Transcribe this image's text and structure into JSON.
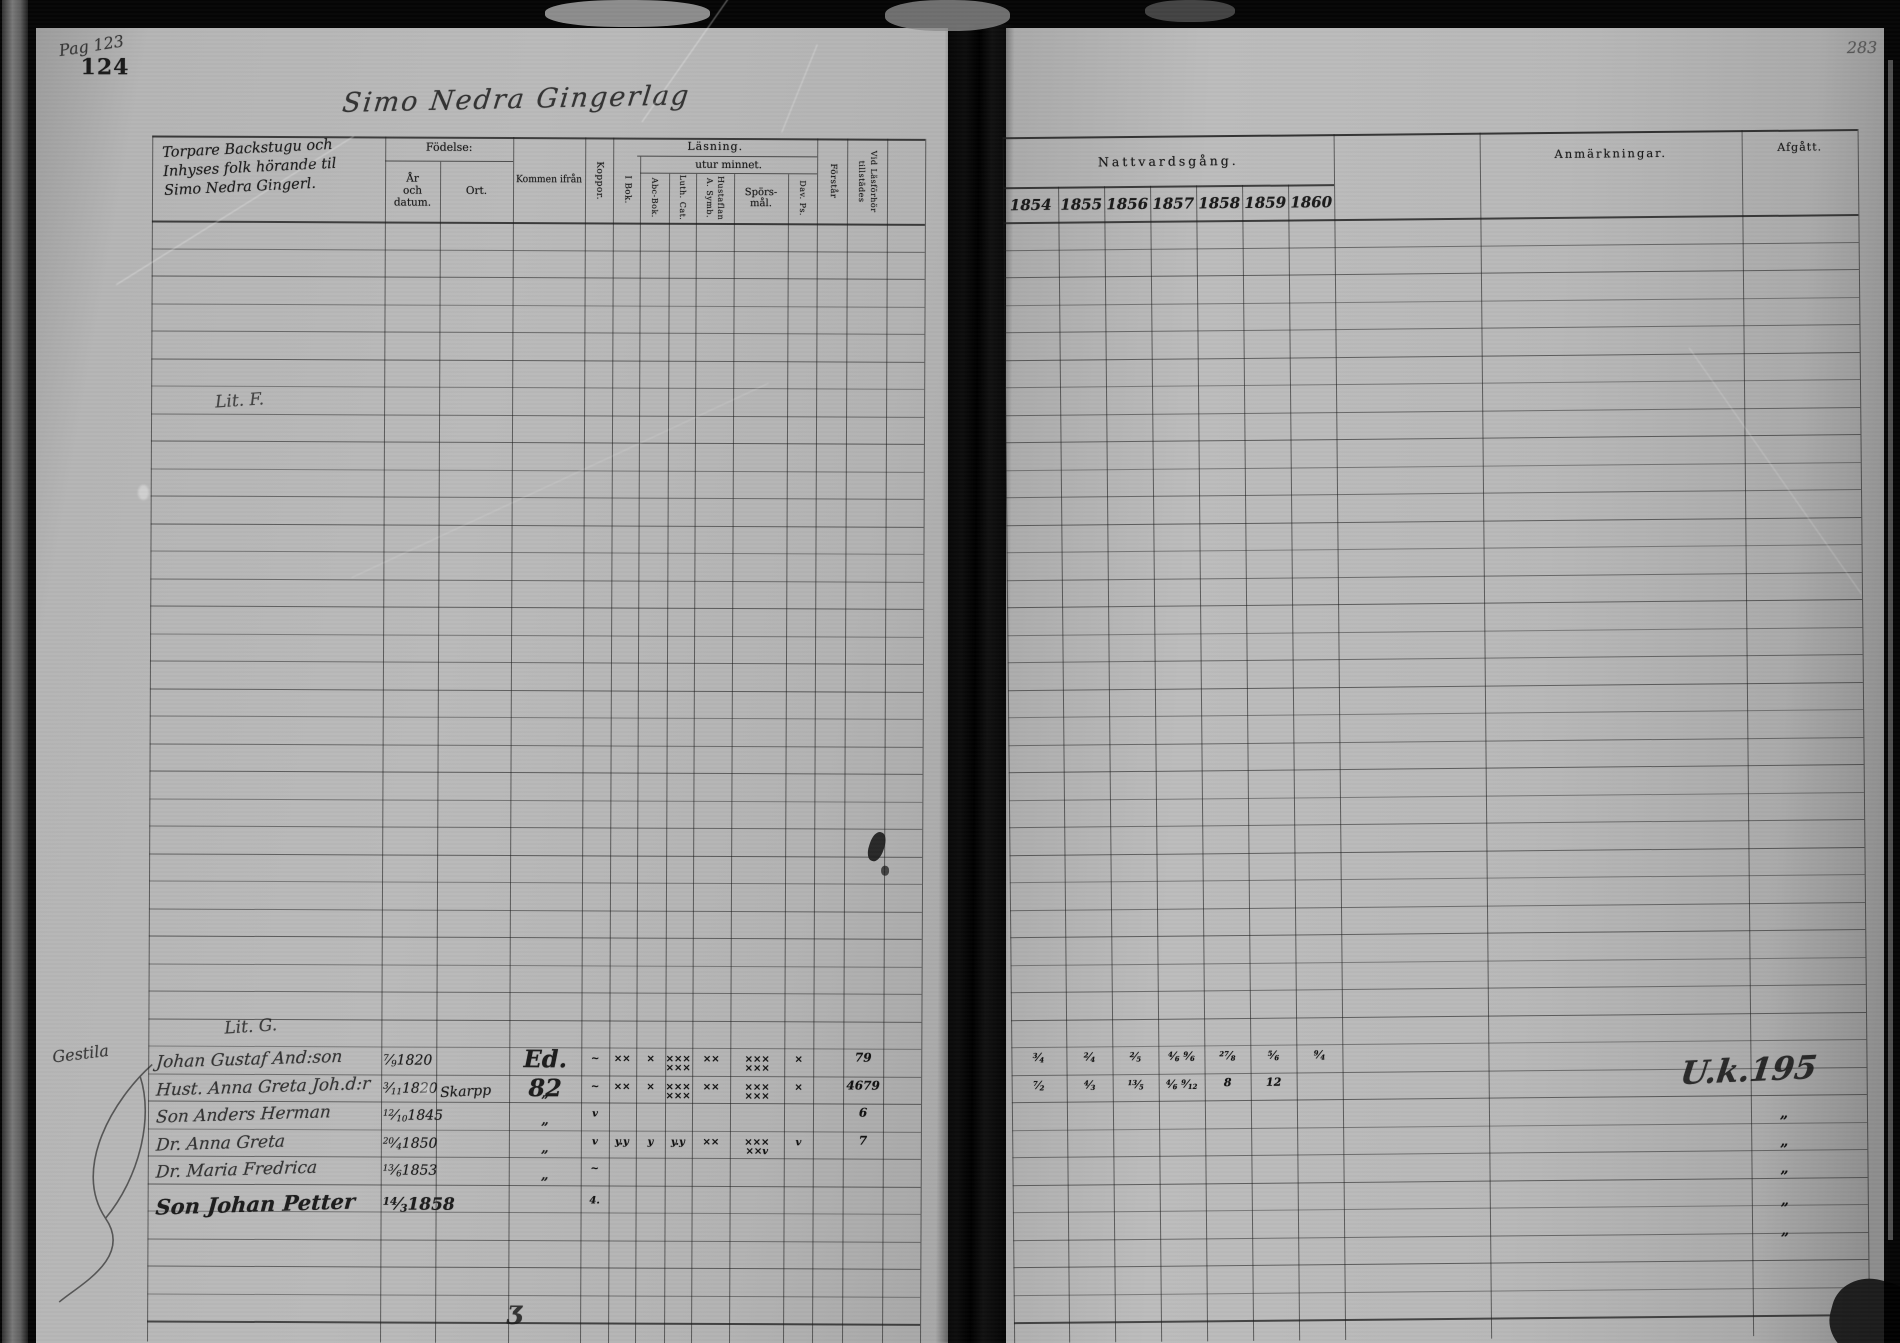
{
  "photo": {
    "pag_note": "Pag 123",
    "left_page_number": "124",
    "right_page_number": "283",
    "title_script": "Simo Nedra Gingerlag"
  },
  "left_table": {
    "name_header_lines": [
      "Torpare Backstugu och",
      "Inhyses folk hörande til",
      "Simo Nedra Gingerl."
    ],
    "fodelse": {
      "label": "Födelse:",
      "ar": "År\noch datum.",
      "ort": "Ort."
    },
    "kommen_ifran": "Kommen ifrån",
    "koppor": "Koppor.",
    "lasning": {
      "label": "Läsning.",
      "i_bok": "I Bok.",
      "utur_minnet": "utur minnet.",
      "cols": [
        "Abc-Bok.",
        "Luth. Cat.",
        "Hustaflan\nA. Symb.",
        "Spörs-\nmål.",
        "Dav. Ps."
      ]
    },
    "forstar": "Förstår",
    "vid_lasforhor": "Vid Läsförhör\ntillstädes"
  },
  "right_table": {
    "nattvardsgang": "Nattvardsgång.",
    "years": [
      "1854",
      "1855",
      "1856",
      "1857",
      "1858",
      "1859",
      "1860"
    ],
    "anmarkningar": "Anmärkningar.",
    "afgatt": "Afgått."
  },
  "annotations": {
    "lit_f": "Lit. F.",
    "lit_g": "Lit. G.",
    "margin_name": "Gestila",
    "uk_note": "U.k.195",
    "stray_mark": "ʒ"
  },
  "entries": [
    {
      "name": "Johan Gustaf And:son",
      "date": "7/9",
      "year": "1820",
      "ort": "",
      "kommen": "Ed. 82",
      "marks": {
        "koppor": "~",
        "i_bok": "××",
        "abc": "×",
        "luth": "×××\n×××",
        "hust": "××",
        "spors": "×××\n×××",
        "dav": "×"
      },
      "vid": "79",
      "nvg": [
        "3/4",
        "2/4",
        "2/5",
        "4/6 9/6",
        "27/8",
        "5/6",
        "9/4"
      ],
      "afgatt": "",
      "bold": false
    },
    {
      "name": "Hust. Anna Greta Joh.d:r",
      "date": "3/11",
      "year": "1820",
      "ort": "Skarpp",
      "kommen": "„",
      "marks": {
        "koppor": "~",
        "i_bok": "××",
        "abc": "×",
        "luth": "×××\n×××",
        "hust": "××",
        "spors": "×××\n×××",
        "dav": "×"
      },
      "vid": "4679",
      "nvg": [
        "7/2",
        "4/3",
        "13/5",
        "4/6 9/12",
        "8",
        "12"
      ],
      "afgatt": "",
      "bold": false
    },
    {
      "name": "Son Anders Herman",
      "date": "12/10",
      "year": "1845",
      "ort": "",
      "kommen": "„",
      "marks": {
        "koppor": "v"
      },
      "vid": "6",
      "nvg": [],
      "afgatt": "„",
      "bold": false
    },
    {
      "name": "Dr. Anna Greta",
      "date": "20/4",
      "year": "1850",
      "ort": "",
      "kommen": "„",
      "marks": {
        "koppor": "v",
        "i_bok": "y.y",
        "abc": "y",
        "luth": "y.y",
        "hust": "××",
        "spors": "×××\n××v",
        "dav": "v"
      },
      "vid": "7",
      "nvg": [],
      "afgatt": "„",
      "bold": false
    },
    {
      "name": "Dr. Maria Fredrica",
      "date": "13/6",
      "year": "1853",
      "ort": "",
      "kommen": "„",
      "marks": {
        "koppor": "~"
      },
      "vid": "",
      "nvg": [],
      "afgatt": "„",
      "bold": false
    },
    {
      "name": "Son Johan Petter",
      "date": "14/3",
      "year": "1858",
      "ort": "",
      "kommen": "",
      "marks": {
        "koppor": "4."
      },
      "vid": "",
      "nvg": [],
      "afgatt": "„",
      "bold": true
    },
    {
      "name": "",
      "date": "",
      "year": "",
      "ort": "",
      "kommen": "",
      "marks": {},
      "vid": "",
      "nvg": [],
      "afgatt": "„",
      "bold": false
    }
  ]
}
